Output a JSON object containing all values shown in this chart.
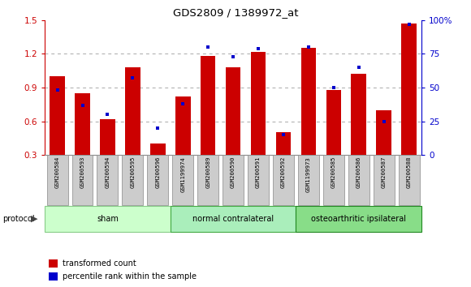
{
  "title": "GDS2809 / 1389972_at",
  "categories": [
    "GSM200584",
    "GSM200593",
    "GSM200594",
    "GSM200595",
    "GSM200596",
    "GSM1199974",
    "GSM200589",
    "GSM200590",
    "GSM200591",
    "GSM200592",
    "GSM1199973",
    "GSM200585",
    "GSM200586",
    "GSM200587",
    "GSM200588"
  ],
  "red_values": [
    1.0,
    0.85,
    0.62,
    1.08,
    0.4,
    0.82,
    1.18,
    1.08,
    1.22,
    0.5,
    1.25,
    0.88,
    1.02,
    0.7,
    1.47
  ],
  "blue_pct": [
    48,
    37,
    30,
    57,
    20,
    38,
    80,
    73,
    79,
    15,
    80,
    50,
    65,
    25,
    97
  ],
  "groups": [
    {
      "label": "sham",
      "start": 0,
      "end": 5
    },
    {
      "label": "normal contralateral",
      "start": 5,
      "end": 10
    },
    {
      "label": "osteoarthritic ipsilateral",
      "start": 10,
      "end": 15
    }
  ],
  "group_colors": [
    "#ccffcc",
    "#aaeebb",
    "#88dd88"
  ],
  "group_border_colors": [
    "#88cc88",
    "#44aa44",
    "#228822"
  ],
  "ylim_left": [
    0.3,
    1.5
  ],
  "ylim_right": [
    0,
    100
  ],
  "yticks_left": [
    0.3,
    0.6,
    0.9,
    1.2,
    1.5
  ],
  "yticks_right": [
    0,
    25,
    50,
    75,
    100
  ],
  "left_color": "#cc0000",
  "right_color": "#0000cc",
  "bar_color": "#cc0000",
  "dot_color": "#0000cc",
  "tick_label_bg": "#cccccc",
  "tick_label_border": "#888888"
}
